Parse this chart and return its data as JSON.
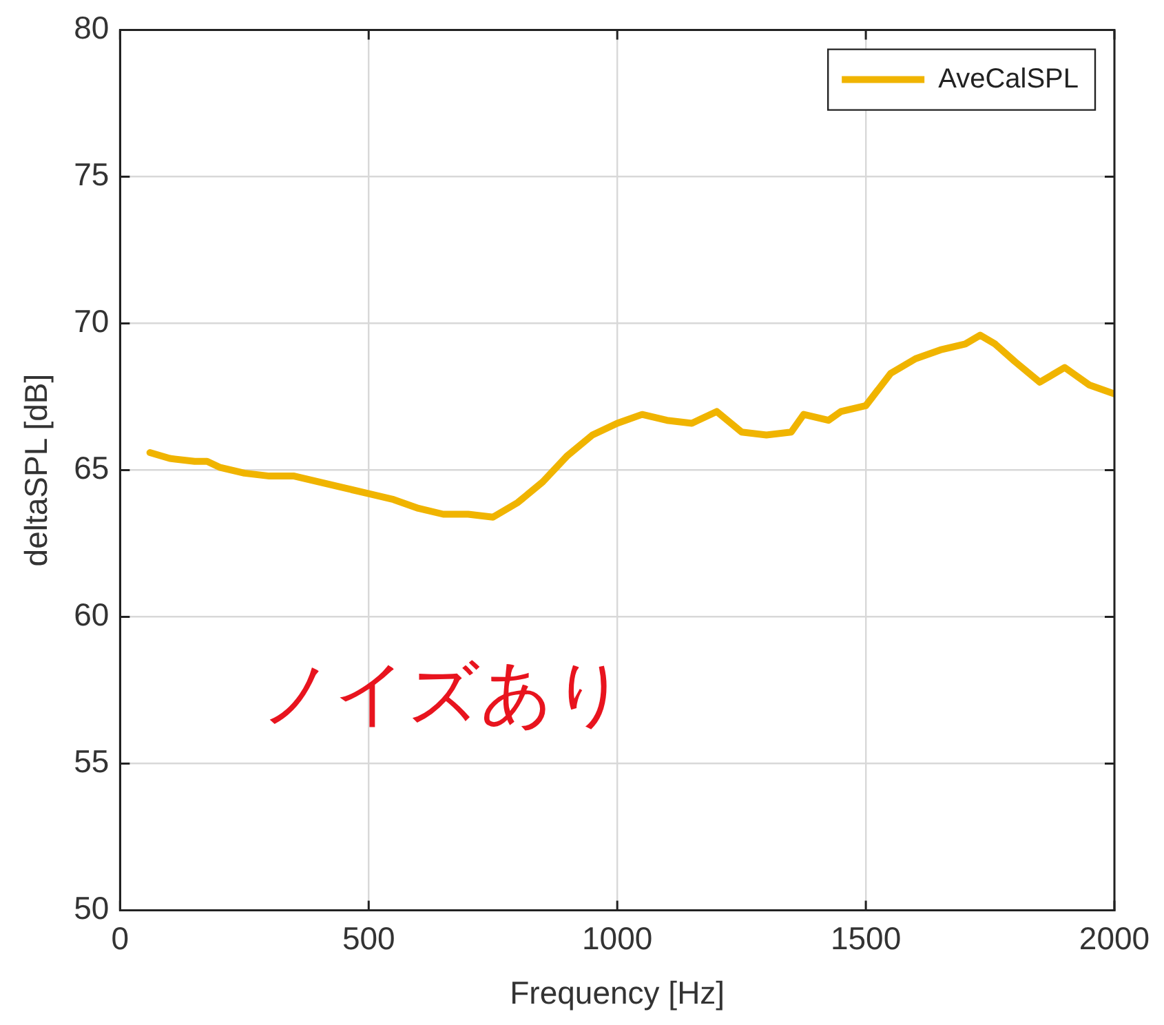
{
  "chart_data": {
    "type": "line",
    "xlabel": "Frequency [Hz]",
    "ylabel": "deltaSPL [dB]",
    "x": [
      60,
      100,
      150,
      175,
      200,
      250,
      300,
      350,
      400,
      450,
      500,
      550,
      600,
      650,
      700,
      750,
      800,
      850,
      900,
      950,
      1000,
      1050,
      1100,
      1150,
      1200,
      1250,
      1300,
      1350,
      1375,
      1425,
      1450,
      1500,
      1550,
      1600,
      1650,
      1700,
      1730,
      1760,
      1800,
      1850,
      1900,
      1950,
      2000
    ],
    "series": [
      {
        "name": "AveCalSPL",
        "color": "#f0b400",
        "values": [
          65.6,
          65.4,
          65.3,
          65.3,
          65.1,
          64.9,
          64.8,
          64.8,
          64.6,
          64.4,
          64.2,
          64.0,
          63.7,
          63.5,
          63.5,
          63.4,
          63.9,
          64.6,
          65.5,
          66.2,
          66.6,
          66.9,
          66.7,
          66.6,
          67.0,
          66.3,
          66.2,
          66.3,
          66.9,
          66.7,
          67.0,
          67.2,
          68.3,
          68.8,
          69.1,
          69.3,
          69.6,
          69.3,
          68.7,
          68.0,
          68.5,
          67.9,
          67.6
        ]
      }
    ],
    "xlim": [
      0,
      2000
    ],
    "xticks": [
      0,
      500,
      1000,
      1500,
      2000
    ],
    "ylim": [
      50,
      80
    ],
    "yticks": [
      50,
      55,
      60,
      65,
      70,
      75,
      80
    ],
    "grid": true,
    "legend": "top right",
    "marker": "none",
    "line_style": "solid",
    "annotations": [
      "ノイズあり"
    ]
  }
}
